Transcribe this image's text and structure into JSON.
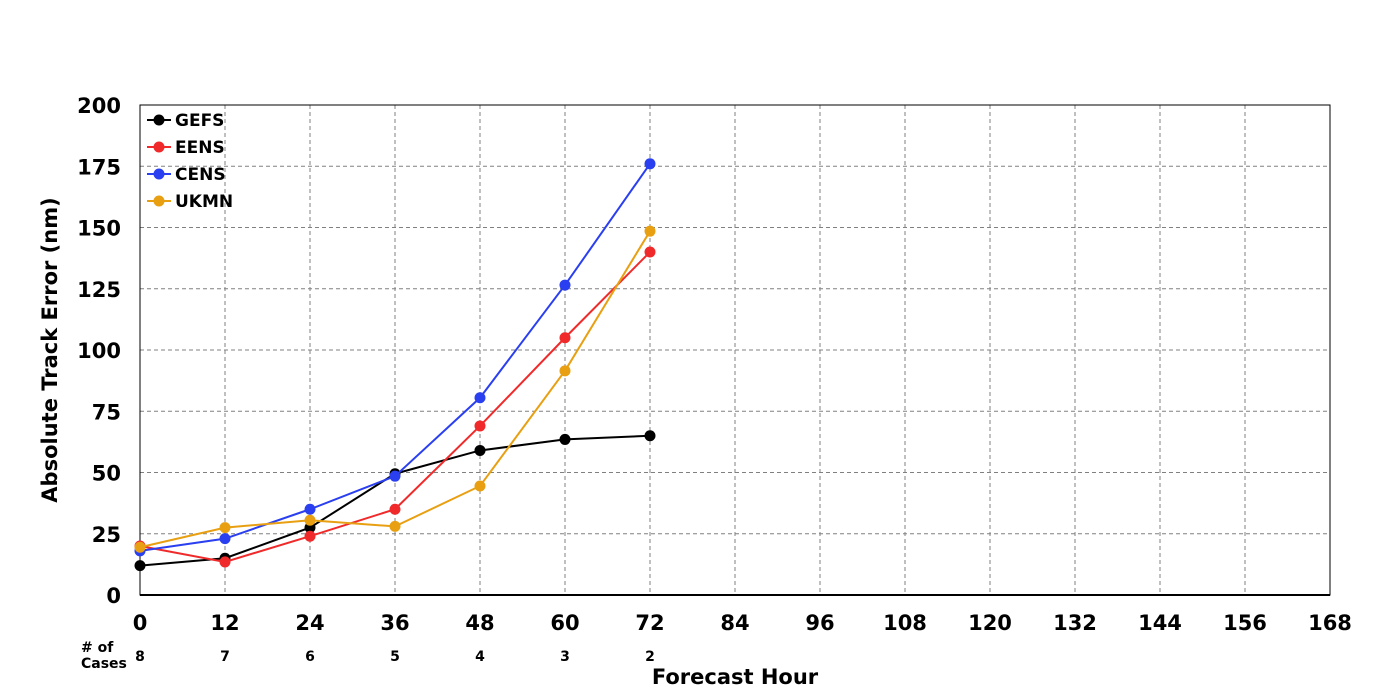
{
  "chart_data": {
    "type": "line",
    "xlabel": "Forecast Hour",
    "ylabel": "Absolute Track Error (nm)",
    "xlim": [
      0,
      168
    ],
    "ylim": [
      0,
      200
    ],
    "x_ticks": [
      0,
      12,
      24,
      36,
      48,
      60,
      72,
      84,
      96,
      108,
      120,
      132,
      144,
      156,
      168
    ],
    "y_ticks": [
      0,
      25,
      50,
      75,
      100,
      125,
      150,
      175,
      200
    ],
    "grid": true,
    "legend_position": "top-left",
    "x": [
      0,
      12,
      24,
      36,
      48,
      60,
      72
    ],
    "series": [
      {
        "name": "GEFS",
        "color": "#000000",
        "values": [
          12,
          15,
          27.5,
          49.5,
          59,
          63.5,
          65
        ]
      },
      {
        "name": "EENS",
        "color": "#f02a2a",
        "values": [
          20,
          13.5,
          24,
          35,
          69,
          105,
          140
        ]
      },
      {
        "name": "CENS",
        "color": "#2a3ff0",
        "values": [
          18,
          23,
          35,
          48.5,
          80.5,
          126.5,
          176
        ]
      },
      {
        "name": "UKMN",
        "color": "#e8a012",
        "values": [
          19.5,
          27.5,
          30.5,
          28,
          44.5,
          91.5,
          148.5
        ]
      }
    ],
    "cases": {
      "label_line1": "# of",
      "label_line2": "Cases",
      "x": [
        0,
        12,
        24,
        36,
        48,
        60,
        72
      ],
      "counts": [
        "8",
        "7",
        "6",
        "5",
        "4",
        "3",
        "2"
      ]
    }
  }
}
